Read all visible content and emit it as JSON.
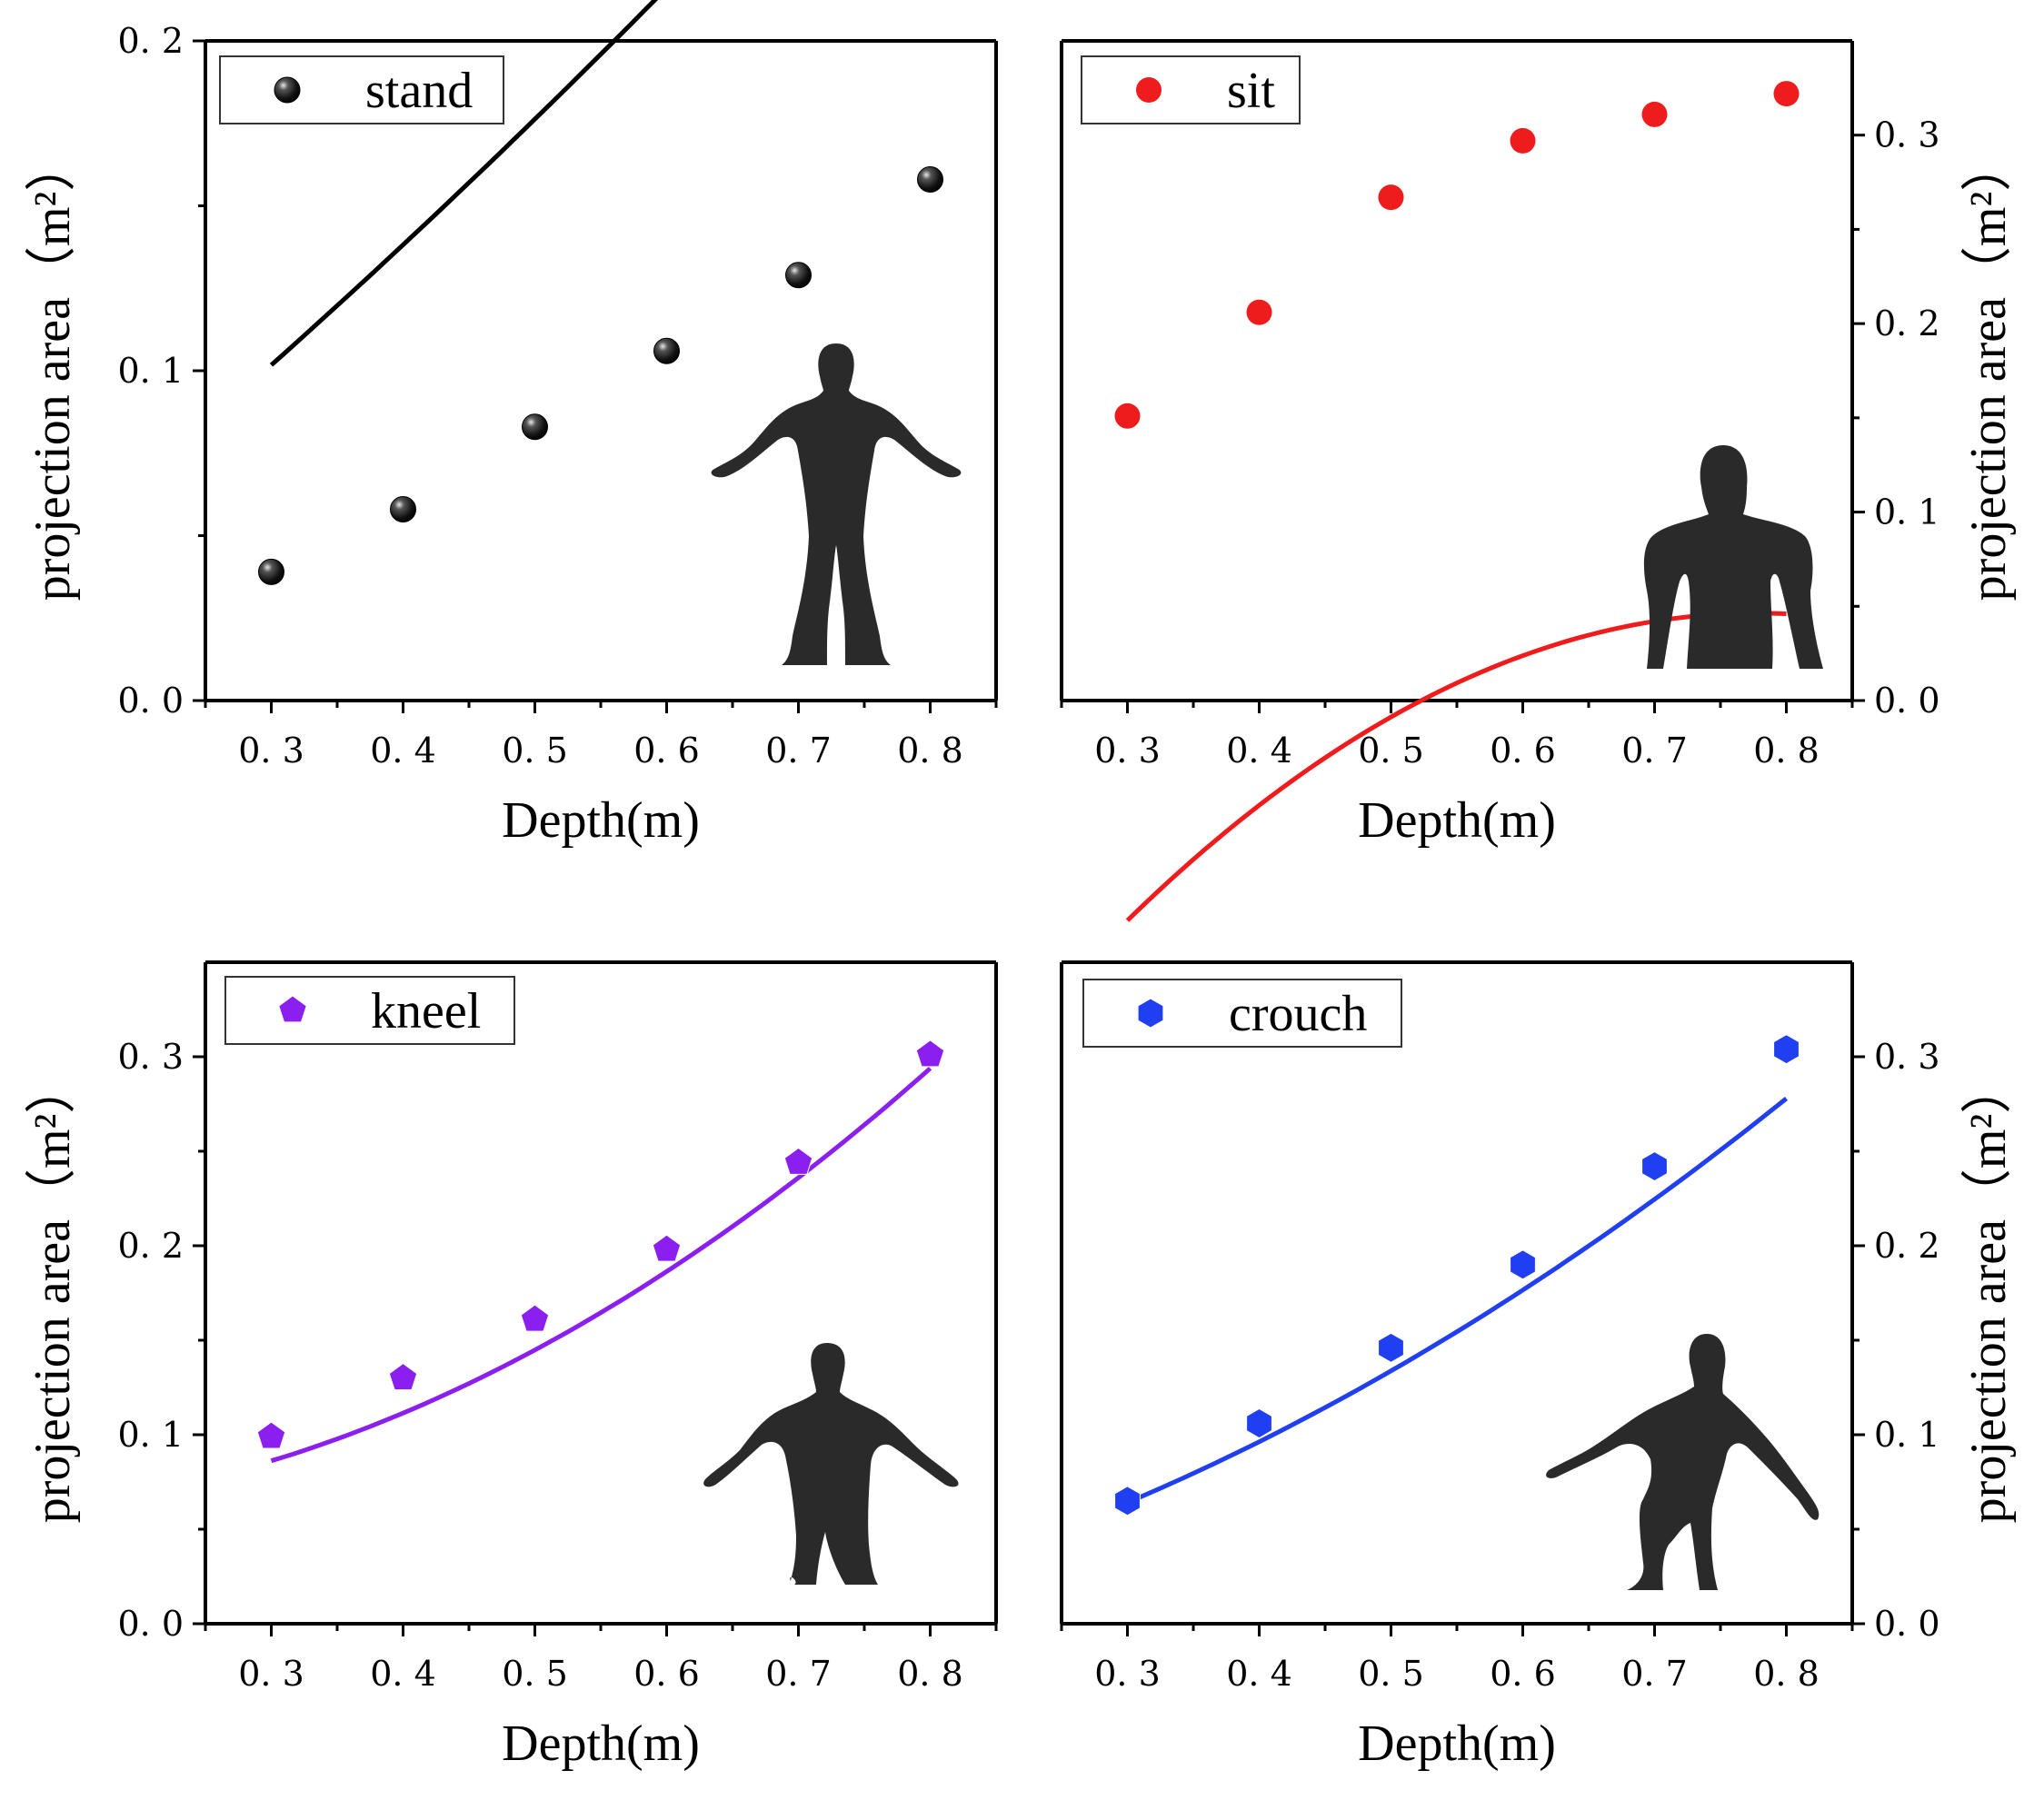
{
  "colors": {
    "stand": "#000000",
    "sit": "#ee1c1c",
    "kneel": "#8a1ff0",
    "crouch": "#1f3ff0",
    "silhouette": "#2a2a2a"
  },
  "chart_data": [
    {
      "id": "stand",
      "type": "line",
      "marker": "sphere",
      "legend": "stand",
      "xlabel": "Depth(m)",
      "ylabel": "projection area（m²）",
      "y_axis_side": "left",
      "xlim": [
        0.25,
        0.85
      ],
      "ylim": [
        0.0,
        0.2
      ],
      "xticks": [
        0.3,
        0.4,
        0.5,
        0.6,
        0.7,
        0.8
      ],
      "xtick_labels": [
        "0. 3",
        "0. 4",
        "0. 5",
        "0. 6",
        "0. 7",
        "0. 8"
      ],
      "yticks": [
        0.0,
        0.1,
        0.2
      ],
      "ytick_labels": [
        "0. 0",
        "0. 1",
        "0. 2"
      ],
      "x": [
        0.3,
        0.4,
        0.5,
        0.6,
        0.7,
        0.8
      ],
      "y": [
        0.039,
        0.058,
        0.083,
        0.106,
        0.129,
        0.158
      ],
      "fit": [
        0.0022,
        0.3071,
        0.0821
      ],
      "silhouette": "standing-figure-icon"
    },
    {
      "id": "sit",
      "type": "line",
      "marker": "circle",
      "legend": "sit",
      "xlabel": "Depth(m)",
      "ylabel": "projection area（m²）",
      "y_axis_side": "right",
      "xlim": [
        0.25,
        0.85
      ],
      "ylim": [
        0.0,
        0.35
      ],
      "xticks": [
        0.3,
        0.4,
        0.5,
        0.6,
        0.7,
        0.8
      ],
      "xtick_labels": [
        "0. 3",
        "0. 4",
        "0. 5",
        "0. 6",
        "0. 7",
        "0. 8"
      ],
      "yticks": [
        0.0,
        0.1,
        0.2,
        0.3
      ],
      "ytick_labels": [
        "0. 0",
        "0. 1",
        "0. 2",
        "0. 3"
      ],
      "x": [
        0.3,
        0.4,
        0.5,
        0.6,
        0.7,
        0.8
      ],
      "y": [
        0.151,
        0.206,
        0.267,
        0.297,
        0.311,
        0.322
      ],
      "fit": [
        -0.3857,
        1.1111,
        -0.7143
      ],
      "silhouette": "sitting-figure-icon"
    },
    {
      "id": "kneel",
      "type": "line",
      "marker": "pentagon",
      "legend": "kneel",
      "xlabel": "Depth(m)",
      "ylabel": "projection area（m²）",
      "y_axis_side": "left",
      "xlim": [
        0.25,
        0.85
      ],
      "ylim": [
        0.0,
        0.35
      ],
      "xticks": [
        0.3,
        0.4,
        0.5,
        0.6,
        0.7,
        0.8
      ],
      "xtick_labels": [
        "0. 3",
        "0. 4",
        "0. 5",
        "0. 6",
        "0. 7",
        "0. 8"
      ],
      "yticks": [
        0.0,
        0.1,
        0.2,
        0.3
      ],
      "ytick_labels": [
        "0. 0",
        "0. 1",
        "0. 2",
        "0. 3"
      ],
      "x": [
        0.3,
        0.4,
        0.5,
        0.6,
        0.7,
        0.8
      ],
      "y": [
        0.099,
        0.13,
        0.161,
        0.198,
        0.244,
        0.301
      ],
      "fit": [
        0.0593,
        -0.0325,
        0.4071
      ],
      "silhouette": "kneeling-figure-icon"
    },
    {
      "id": "crouch",
      "type": "line",
      "marker": "hexagon",
      "legend": "crouch",
      "xlabel": "Depth(m)",
      "ylabel": "projection area（m²）",
      "y_axis_side": "right",
      "xlim": [
        0.25,
        0.85
      ],
      "ylim": [
        0.0,
        0.35
      ],
      "xticks": [
        0.3,
        0.4,
        0.5,
        0.6,
        0.7,
        0.8
      ],
      "xtick_labels": [
        "0. 3",
        "0. 4",
        "0. 5",
        "0. 6",
        "0. 7",
        "0. 8"
      ],
      "yticks": [
        0.0,
        0.1,
        0.2,
        0.3
      ],
      "ytick_labels": [
        "0. 0",
        "0. 1",
        "0. 2",
        "0. 3"
      ],
      "x": [
        0.3,
        0.4,
        0.5,
        0.6,
        0.7,
        0.8
      ],
      "y": [
        0.065,
        0.106,
        0.146,
        0.19,
        0.242,
        0.304
      ],
      "fit": [
        -0.0007,
        0.1368,
        0.2643
      ],
      "silhouette": "crouching-figure-icon"
    }
  ]
}
